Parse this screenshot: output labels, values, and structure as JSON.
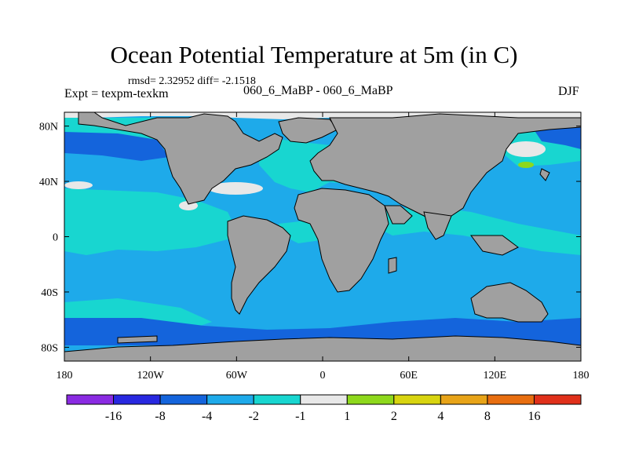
{
  "header": {
    "title": "Ocean Potential Temperature at 5m (in C)",
    "stats": "rmsd= 2.32952 diff= -2.1518",
    "experiment": "Expt = texpm-texkm",
    "period": "060_6_MaBP - 060_6_MaBP",
    "season": "DJF"
  },
  "map": {
    "projection": "cylindrical equidistant",
    "lon_range": [
      -180,
      180
    ],
    "lat_range": [
      -90,
      90
    ],
    "land_color": "#a0a0a0",
    "ocean_default_color": "#1eaaea",
    "x_ticks": [
      {
        "lon": -180,
        "label": "180"
      },
      {
        "lon": -120,
        "label": "120W"
      },
      {
        "lon": -60,
        "label": "60W"
      },
      {
        "lon": 0,
        "label": "0"
      },
      {
        "lon": 60,
        "label": "60E"
      },
      {
        "lon": 120,
        "label": "120E"
      },
      {
        "lon": 180,
        "label": "180"
      }
    ],
    "y_ticks": [
      {
        "lat": 80,
        "label": "80N"
      },
      {
        "lat": 40,
        "label": "40N"
      },
      {
        "lat": 0,
        "label": "0"
      },
      {
        "lat": -40,
        "label": "40S"
      },
      {
        "lat": -80,
        "label": "80S"
      }
    ]
  },
  "colorbar": {
    "colors": [
      "#8a2be2",
      "#2828e0",
      "#1464dc",
      "#1eaaea",
      "#18d6d0",
      "#e8e8e8",
      "#8ed81c",
      "#d8d410",
      "#e8a418",
      "#e86e10",
      "#e0301a"
    ],
    "labels": [
      "-16",
      "-8",
      "-4",
      "-2",
      "-1",
      "1",
      "2",
      "4",
      "8",
      "16"
    ]
  }
}
